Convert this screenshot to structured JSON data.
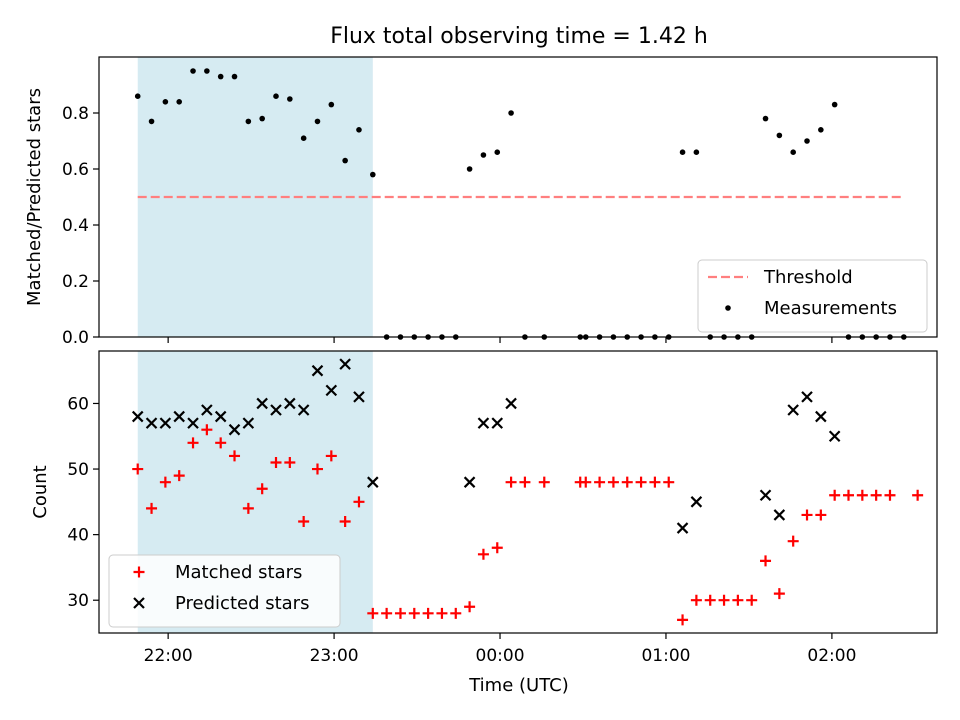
{
  "title": "Flux total observing time = 1.42 h",
  "chart_data": [
    {
      "type": "scatter",
      "panel": "top",
      "title": "Flux total observing time = 1.42 h",
      "xlabel": "",
      "ylabel": "Matched/Predicted stars",
      "xlim": [
        "21:35",
        "02:38"
      ],
      "ylim": [
        0,
        1.0
      ],
      "yticks": [
        0.0,
        0.2,
        0.4,
        0.6,
        0.8
      ],
      "ytick_labels": [
        "0.0",
        "0.2",
        "0.4",
        "0.6",
        "0.8"
      ],
      "xticks": [
        "22:00",
        "23:00",
        "00:00",
        "01:00",
        "02:00"
      ],
      "shaded_region": {
        "start": "21:49",
        "end": "23:14",
        "color": "#add8e6"
      },
      "threshold": {
        "name": "Threshold",
        "value": 0.5,
        "start": "21:49",
        "end": "02:25",
        "color": "#ff7f7f",
        "style": "dashed"
      },
      "legend_location": "lower right",
      "series": [
        {
          "name": "Measurements",
          "marker": "dot",
          "color": "#000000",
          "points": [
            [
              "21:49",
              0.86
            ],
            [
              "21:54",
              0.77
            ],
            [
              "21:59",
              0.84
            ],
            [
              "22:04",
              0.84
            ],
            [
              "22:09",
              0.95
            ],
            [
              "22:14",
              0.95
            ],
            [
              "22:19",
              0.93
            ],
            [
              "22:24",
              0.93
            ],
            [
              "22:29",
              0.77
            ],
            [
              "22:34",
              0.78
            ],
            [
              "22:39",
              0.86
            ],
            [
              "22:44",
              0.85
            ],
            [
              "22:49",
              0.71
            ],
            [
              "22:54",
              0.77
            ],
            [
              "22:59",
              0.83
            ],
            [
              "23:04",
              0.63
            ],
            [
              "23:09",
              0.74
            ],
            [
              "23:14",
              0.58
            ],
            [
              "23:19",
              0.0
            ],
            [
              "23:24",
              0.0
            ],
            [
              "23:29",
              0.0
            ],
            [
              "23:34",
              0.0
            ],
            [
              "23:39",
              0.0
            ],
            [
              "23:44",
              0.0
            ],
            [
              "23:49",
              0.6
            ],
            [
              "23:54",
              0.65
            ],
            [
              "23:59",
              0.66
            ],
            [
              "00:04",
              0.8
            ],
            [
              "00:09",
              0.0
            ],
            [
              "00:16",
              0.0
            ],
            [
              "00:29",
              0.0
            ],
            [
              "00:31",
              0.0
            ],
            [
              "00:36",
              0.0
            ],
            [
              "00:41",
              0.0
            ],
            [
              "00:46",
              0.0
            ],
            [
              "00:51",
              0.0
            ],
            [
              "00:56",
              0.0
            ],
            [
              "01:01",
              0.0
            ],
            [
              "01:06",
              0.66
            ],
            [
              "01:11",
              0.66
            ],
            [
              "01:16",
              0.0
            ],
            [
              "01:21",
              0.0
            ],
            [
              "01:26",
              0.0
            ],
            [
              "01:31",
              0.0
            ],
            [
              "01:36",
              0.78
            ],
            [
              "01:41",
              0.72
            ],
            [
              "01:46",
              0.66
            ],
            [
              "01:51",
              0.7
            ],
            [
              "01:56",
              0.74
            ],
            [
              "02:01",
              0.83
            ],
            [
              "02:06",
              0.0
            ],
            [
              "02:11",
              0.0
            ],
            [
              "02:16",
              0.0
            ],
            [
              "02:21",
              0.0
            ],
            [
              "02:26",
              0.0
            ]
          ]
        }
      ]
    },
    {
      "type": "scatter",
      "panel": "bottom",
      "xlabel": "Time (UTC)",
      "ylabel": "Count",
      "xlim": [
        "21:35",
        "02:38"
      ],
      "ylim": [
        25,
        68
      ],
      "yticks": [
        30,
        40,
        50,
        60
      ],
      "ytick_labels": [
        "30",
        "40",
        "50",
        "60"
      ],
      "xticks": [
        "22:00",
        "23:00",
        "00:00",
        "01:00",
        "02:00"
      ],
      "xtick_labels": [
        "22:00",
        "23:00",
        "00:00",
        "01:00",
        "02:00"
      ],
      "shaded_region": {
        "start": "21:49",
        "end": "23:14",
        "color": "#add8e6"
      },
      "legend_location": "lower left",
      "series": [
        {
          "name": "Matched stars",
          "marker": "plus",
          "color": "#ff0000",
          "points": [
            [
              "21:49",
              50
            ],
            [
              "21:54",
              44
            ],
            [
              "21:59",
              48
            ],
            [
              "22:04",
              49
            ],
            [
              "22:09",
              54
            ],
            [
              "22:14",
              56
            ],
            [
              "22:19",
              54
            ],
            [
              "22:24",
              52
            ],
            [
              "22:29",
              44
            ],
            [
              "22:34",
              47
            ],
            [
              "22:39",
              51
            ],
            [
              "22:44",
              51
            ],
            [
              "22:49",
              42
            ],
            [
              "22:54",
              50
            ],
            [
              "22:59",
              52
            ],
            [
              "23:04",
              42
            ],
            [
              "23:09",
              45
            ],
            [
              "23:14",
              28
            ],
            [
              "23:19",
              28
            ],
            [
              "23:24",
              28
            ],
            [
              "23:29",
              28
            ],
            [
              "23:34",
              28
            ],
            [
              "23:39",
              28
            ],
            [
              "23:44",
              28
            ],
            [
              "23:49",
              29
            ],
            [
              "23:54",
              37
            ],
            [
              "23:59",
              38
            ],
            [
              "00:04",
              48
            ],
            [
              "00:09",
              48
            ],
            [
              "00:16",
              48
            ],
            [
              "00:29",
              48
            ],
            [
              "00:31",
              48
            ],
            [
              "00:36",
              48
            ],
            [
              "00:41",
              48
            ],
            [
              "00:46",
              48
            ],
            [
              "00:51",
              48
            ],
            [
              "00:56",
              48
            ],
            [
              "01:01",
              48
            ],
            [
              "01:06",
              27
            ],
            [
              "01:11",
              30
            ],
            [
              "01:16",
              30
            ],
            [
              "01:21",
              30
            ],
            [
              "01:26",
              30
            ],
            [
              "01:31",
              30
            ],
            [
              "01:36",
              36
            ],
            [
              "01:41",
              31
            ],
            [
              "01:46",
              39
            ],
            [
              "01:51",
              43
            ],
            [
              "01:56",
              43
            ],
            [
              "02:01",
              46
            ],
            [
              "02:06",
              46
            ],
            [
              "02:11",
              46
            ],
            [
              "02:16",
              46
            ],
            [
              "02:21",
              46
            ],
            [
              "02:31",
              46
            ]
          ]
        },
        {
          "name": "Predicted stars",
          "marker": "x",
          "color": "#000000",
          "points": [
            [
              "21:49",
              58
            ],
            [
              "21:54",
              57
            ],
            [
              "21:59",
              57
            ],
            [
              "22:04",
              58
            ],
            [
              "22:09",
              57
            ],
            [
              "22:14",
              59
            ],
            [
              "22:19",
              58
            ],
            [
              "22:24",
              56
            ],
            [
              "22:29",
              57
            ],
            [
              "22:34",
              60
            ],
            [
              "22:39",
              59
            ],
            [
              "22:44",
              60
            ],
            [
              "22:49",
              59
            ],
            [
              "22:54",
              65
            ],
            [
              "22:59",
              62
            ],
            [
              "23:04",
              66
            ],
            [
              "23:09",
              61
            ],
            [
              "23:14",
              48
            ],
            [
              "23:49",
              48
            ],
            [
              "23:54",
              57
            ],
            [
              "23:59",
              57
            ],
            [
              "00:04",
              60
            ],
            [
              "01:06",
              41
            ],
            [
              "01:11",
              45
            ],
            [
              "01:36",
              46
            ],
            [
              "01:41",
              43
            ],
            [
              "01:46",
              59
            ],
            [
              "01:51",
              61
            ],
            [
              "01:56",
              58
            ],
            [
              "02:01",
              55
            ]
          ]
        }
      ]
    }
  ]
}
